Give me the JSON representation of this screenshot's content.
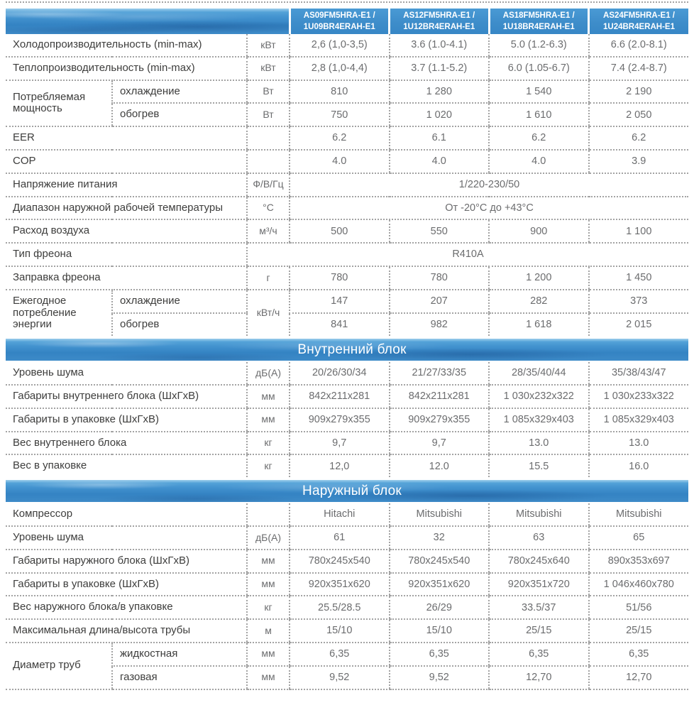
{
  "colors": {
    "band_blue": "#3e8bc8",
    "header_cell_blue": "#3e8dca",
    "dotted_border": "#a3a3a3",
    "label_text": "#3d3d3c",
    "value_text": "#6b6c6e",
    "section_text": "#ffffff"
  },
  "table": {
    "models": [
      {
        "line1": "AS09FM5HRA-E1 /",
        "line2": "1U09BR4ERAH-E1"
      },
      {
        "line1": "AS12FM5HRA-E1 /",
        "line2": "1U12BR4ERAH-E1"
      },
      {
        "line1": "AS18FM5HRA-E1 /",
        "line2": "1U18BR4ERAH-E1"
      },
      {
        "line1": "AS24FM5HRA-E1 /",
        "line2": "1U24BR4ERAH-E1"
      }
    ],
    "rows": [
      {
        "type": "row",
        "label": "Холодопроизводительность (min-max)",
        "unit": "кВт",
        "values": [
          "2,6 (1,0-3,5)",
          "3.6 (1.0-4.1)",
          "5.0 (1.2-6.3)",
          "6.6 (2.0-8.1)"
        ]
      },
      {
        "type": "row",
        "label": "Теплопроизводительность (min-max)",
        "unit": "кВт",
        "values": [
          "2,8 (1,0-4,4)",
          "3.7 (1.1-5.2)",
          "6.0 (1.05-6.7)",
          "7.4 (2.4-8.7)"
        ]
      },
      {
        "type": "group",
        "label": "Потребляемая мощность",
        "subrows": [
          {
            "sub": "охлаждение",
            "unit": "Вт",
            "values": [
              "810",
              "1 280",
              "1 540",
              "2 190"
            ]
          },
          {
            "sub": "обогрев",
            "unit": "Вт",
            "values": [
              "750",
              "1 020",
              "1 610",
              "2 050"
            ]
          }
        ]
      },
      {
        "type": "row",
        "label": "EER",
        "unit": "",
        "values": [
          "6.2",
          "6.1",
          "6.2",
          "6.2"
        ]
      },
      {
        "type": "row",
        "label": "COP",
        "unit": "",
        "values": [
          "4.0",
          "4.0",
          "4.0",
          "3.9"
        ]
      },
      {
        "type": "merged",
        "label": "Напряжение питания",
        "unit": "Ф/В/Гц",
        "value": "1/220-230/50"
      },
      {
        "type": "merged",
        "label": "Диапазон наружной рабочей температуры",
        "unit": "°С",
        "value": "От -20°С до +43°С"
      },
      {
        "type": "row",
        "label": "Расход воздуха",
        "unit": "м³/ч",
        "values": [
          "500",
          "550",
          "900",
          "1 100"
        ]
      },
      {
        "type": "merged_all",
        "label": "Тип фреона",
        "value": "R410A"
      },
      {
        "type": "row",
        "label": "Заправка фреона",
        "unit": "г",
        "values": [
          "780",
          "780",
          "1 200",
          "1 450"
        ]
      },
      {
        "type": "group",
        "label": "Ежегодное потребление энергии",
        "unit": "кВт/ч",
        "subrows": [
          {
            "sub": "охлаждение",
            "values": [
              "147",
              "207",
              "282",
              "373"
            ]
          },
          {
            "sub": "обогрев",
            "values": [
              "841",
              "982",
              "1 618",
              "2 015"
            ]
          }
        ]
      },
      {
        "type": "section",
        "title": "Внутренний блок"
      },
      {
        "type": "row",
        "label": "Уровень шума",
        "unit": "дБ(А)",
        "values": [
          "20/26/30/34",
          "21/27/33/35",
          "28/35/40/44",
          "35/38/43/47"
        ]
      },
      {
        "type": "row",
        "label": "Габариты внутреннего блока (ШхГхВ)",
        "unit": "мм",
        "values": [
          "842x211x281",
          "842x211x281",
          "1 030x232x322",
          "1 030x233x322"
        ]
      },
      {
        "type": "row",
        "label": "Габариты в упаковке (ШхГхВ)",
        "unit": "мм",
        "values": [
          "909x279x355",
          "909x279x355",
          "1 085x329x403",
          "1 085x329x403"
        ]
      },
      {
        "type": "row",
        "label": "Вес внутреннего блока",
        "unit": "кг",
        "values": [
          "9,7",
          "9,7",
          "13.0",
          "13.0"
        ]
      },
      {
        "type": "row",
        "label": "Вес в упаковке",
        "unit": "кг",
        "values": [
          "12,0",
          "12.0",
          "15.5",
          "16.0"
        ]
      },
      {
        "type": "section",
        "title": "Наружный блок"
      },
      {
        "type": "row",
        "label": "Компрессор",
        "unit": "",
        "values": [
          "Hitachi",
          "Mitsubishi",
          "Mitsubishi",
          "Mitsubishi"
        ]
      },
      {
        "type": "row",
        "label": "Уровень шума",
        "unit": "дБ(А)",
        "values": [
          "61",
          "32",
          "63",
          "65"
        ]
      },
      {
        "type": "row",
        "label": "Габариты наружного блока (ШхГхВ)",
        "unit": "мм",
        "values": [
          "780x245x540",
          "780x245x540",
          "780x245x640",
          "890x353x697"
        ]
      },
      {
        "type": "row",
        "label": "Габариты в упаковке (ШхГхВ)",
        "unit": "мм",
        "values": [
          "920x351x620",
          "920x351x620",
          "920x351x720",
          "1 046x460x780"
        ]
      },
      {
        "type": "row",
        "label": "Вес наружного блока/в упаковке",
        "unit": "кг",
        "values": [
          "25.5/28.5",
          "26/29",
          "33.5/37",
          "51/56"
        ]
      },
      {
        "type": "row",
        "label": "Максимальная длина/высота трубы",
        "unit": "м",
        "values": [
          "15/10",
          "15/10",
          "25/15",
          "25/15"
        ]
      },
      {
        "type": "group",
        "label": "Диаметр труб",
        "subrows": [
          {
            "sub": "жидкостная",
            "unit": "мм",
            "values": [
              "6,35",
              "6,35",
              "6,35",
              "6,35"
            ]
          },
          {
            "sub": "газовая",
            "unit": "мм",
            "values": [
              "9,52",
              "9,52",
              "12,70",
              "12,70"
            ]
          }
        ]
      }
    ]
  }
}
